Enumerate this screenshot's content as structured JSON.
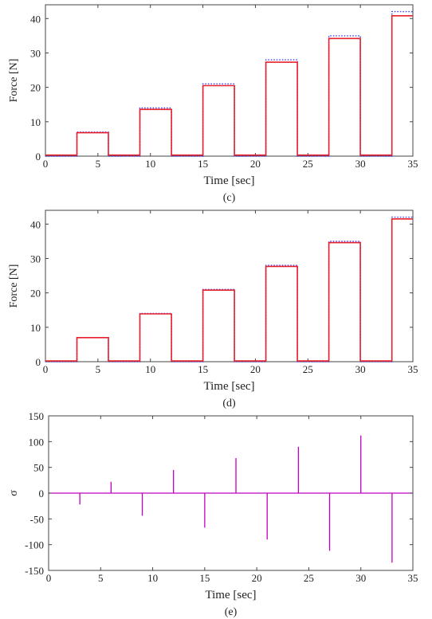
{
  "colors": {
    "reference": "#3a3aff",
    "measured": "#e8202a",
    "sigma": "#c000c0",
    "axis": "#444444"
  },
  "chart_data": [
    {
      "type": "line",
      "caption": "(c)",
      "xlabel": "Time [sec]",
      "ylabel": "Force [N]",
      "xlim": [
        0,
        35
      ],
      "ylim": [
        0,
        44
      ],
      "xticks": [
        0,
        5,
        10,
        15,
        20,
        25,
        30,
        35
      ],
      "yticks": [
        0,
        10,
        20,
        30,
        40
      ],
      "grid": false,
      "series": [
        {
          "color": "#3a3aff",
          "style": "dotted",
          "x": [
            0,
            3,
            3,
            6,
            6,
            9,
            9,
            12,
            12,
            15,
            15,
            18,
            18,
            21,
            21,
            24,
            24,
            27,
            27,
            30,
            30,
            33,
            33,
            35
          ],
          "y": [
            0,
            0,
            7,
            7,
            0,
            0,
            14,
            14,
            0,
            0,
            21,
            21,
            0,
            0,
            28,
            28,
            0,
            0,
            35,
            35,
            0,
            0,
            42,
            42
          ]
        },
        {
          "color": "#e8202a",
          "style": "solid",
          "x": [
            0,
            3,
            3,
            6,
            6,
            9,
            9,
            12,
            12,
            15,
            15,
            18,
            18,
            21,
            21,
            24,
            24,
            27,
            27,
            30,
            30,
            33,
            33,
            35
          ],
          "y": [
            0.3,
            0.3,
            6.8,
            6.8,
            0.3,
            0.3,
            13.6,
            13.6,
            0.3,
            0.3,
            20.5,
            20.5,
            0.3,
            0.3,
            27.3,
            27.3,
            0.3,
            0.3,
            34.2,
            34.2,
            0.3,
            0.3,
            40.8,
            40.8
          ]
        }
      ]
    },
    {
      "type": "line",
      "caption": "(d)",
      "xlabel": "Time [sec]",
      "ylabel": "Force [N]",
      "xlim": [
        0,
        35
      ],
      "ylim": [
        0,
        44
      ],
      "xticks": [
        0,
        5,
        10,
        15,
        20,
        25,
        30,
        35
      ],
      "yticks": [
        0,
        10,
        20,
        30,
        40
      ],
      "grid": false,
      "series": [
        {
          "color": "#3a3aff",
          "style": "dotted",
          "x": [
            0,
            3,
            3,
            6,
            6,
            9,
            9,
            12,
            12,
            15,
            15,
            18,
            18,
            21,
            21,
            24,
            24,
            27,
            27,
            30,
            30,
            33,
            33,
            35
          ],
          "y": [
            0,
            0,
            7,
            7,
            0,
            0,
            14,
            14,
            0,
            0,
            21,
            21,
            0,
            0,
            28,
            28,
            0,
            0,
            35,
            35,
            0,
            0,
            42,
            42
          ]
        },
        {
          "color": "#e8202a",
          "style": "solid",
          "x": [
            0,
            3,
            3,
            6,
            6,
            9,
            9,
            12,
            12,
            15,
            15,
            18,
            18,
            21,
            21,
            24,
            24,
            27,
            27,
            30,
            30,
            33,
            33,
            35
          ],
          "y": [
            0.2,
            0.2,
            7,
            7,
            0.2,
            0.2,
            13.9,
            13.9,
            0.2,
            0.2,
            20.8,
            20.8,
            0.2,
            0.2,
            27.7,
            27.7,
            0.2,
            0.2,
            34.6,
            34.6,
            0.2,
            0.2,
            41.5,
            41.5
          ]
        }
      ]
    },
    {
      "type": "line",
      "caption": "(e)",
      "xlabel": "Time [sec]",
      "ylabel": "σ",
      "xlim": [
        0,
        35
      ],
      "ylim": [
        -150,
        150
      ],
      "xticks": [
        0,
        5,
        10,
        15,
        20,
        25,
        30,
        35
      ],
      "yticks": [
        -150,
        -100,
        -50,
        0,
        50,
        100,
        150
      ],
      "grid": false,
      "series": [
        {
          "color": "#c000c0",
          "style": "solid",
          "spikes": [
            {
              "x": 3,
              "y": -22
            },
            {
              "x": 6,
              "y": 22
            },
            {
              "x": 9,
              "y": -44
            },
            {
              "x": 12,
              "y": 45
            },
            {
              "x": 15,
              "y": -67
            },
            {
              "x": 18,
              "y": 68
            },
            {
              "x": 21,
              "y": -90
            },
            {
              "x": 24,
              "y": 90
            },
            {
              "x": 27,
              "y": -112
            },
            {
              "x": 30,
              "y": 112
            },
            {
              "x": 33,
              "y": -135
            }
          ]
        }
      ]
    }
  ]
}
